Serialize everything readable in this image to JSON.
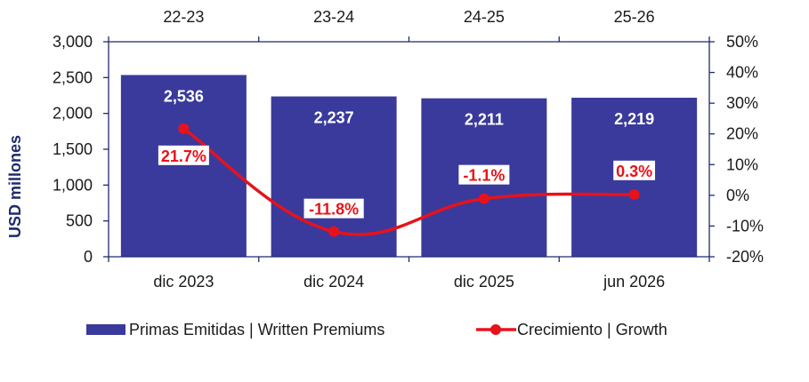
{
  "chart_data": {
    "type": "bar",
    "categories": [
      "dic 2023",
      "dic 2024",
      "dic 2025",
      "jun 2026"
    ],
    "top_categories": [
      "22-23",
      "23-24",
      "24-25",
      "25-26"
    ],
    "ylabel": "USD millones",
    "ylim": [
      0,
      3000
    ],
    "y_ticks": [
      "0",
      "500",
      "1,000",
      "1,500",
      "2,000",
      "2,500",
      "3,000"
    ],
    "y2lim": [
      -20,
      50
    ],
    "y2_ticks": [
      "-20%",
      "-10%",
      "0%",
      "10%",
      "20%",
      "30%",
      "40%",
      "50%"
    ],
    "series": [
      {
        "name": "Primas Emitidas | Written Premiums",
        "type": "bar",
        "axis": "left",
        "color": "#3A3A9C",
        "values": [
          2536,
          2237,
          2211,
          2219
        ],
        "labels": [
          "2,536",
          "2,237",
          "2,211",
          "2,219"
        ]
      },
      {
        "name": "Crecimiento | Growth",
        "type": "line",
        "axis": "right",
        "color": "#E8121A",
        "values": [
          21.7,
          -11.8,
          -1.1,
          0.3
        ],
        "labels": [
          "21.7%",
          "-11.8%",
          "-1.1%",
          "0.3%"
        ]
      }
    ],
    "legend_position": "bottom",
    "grid": false
  }
}
